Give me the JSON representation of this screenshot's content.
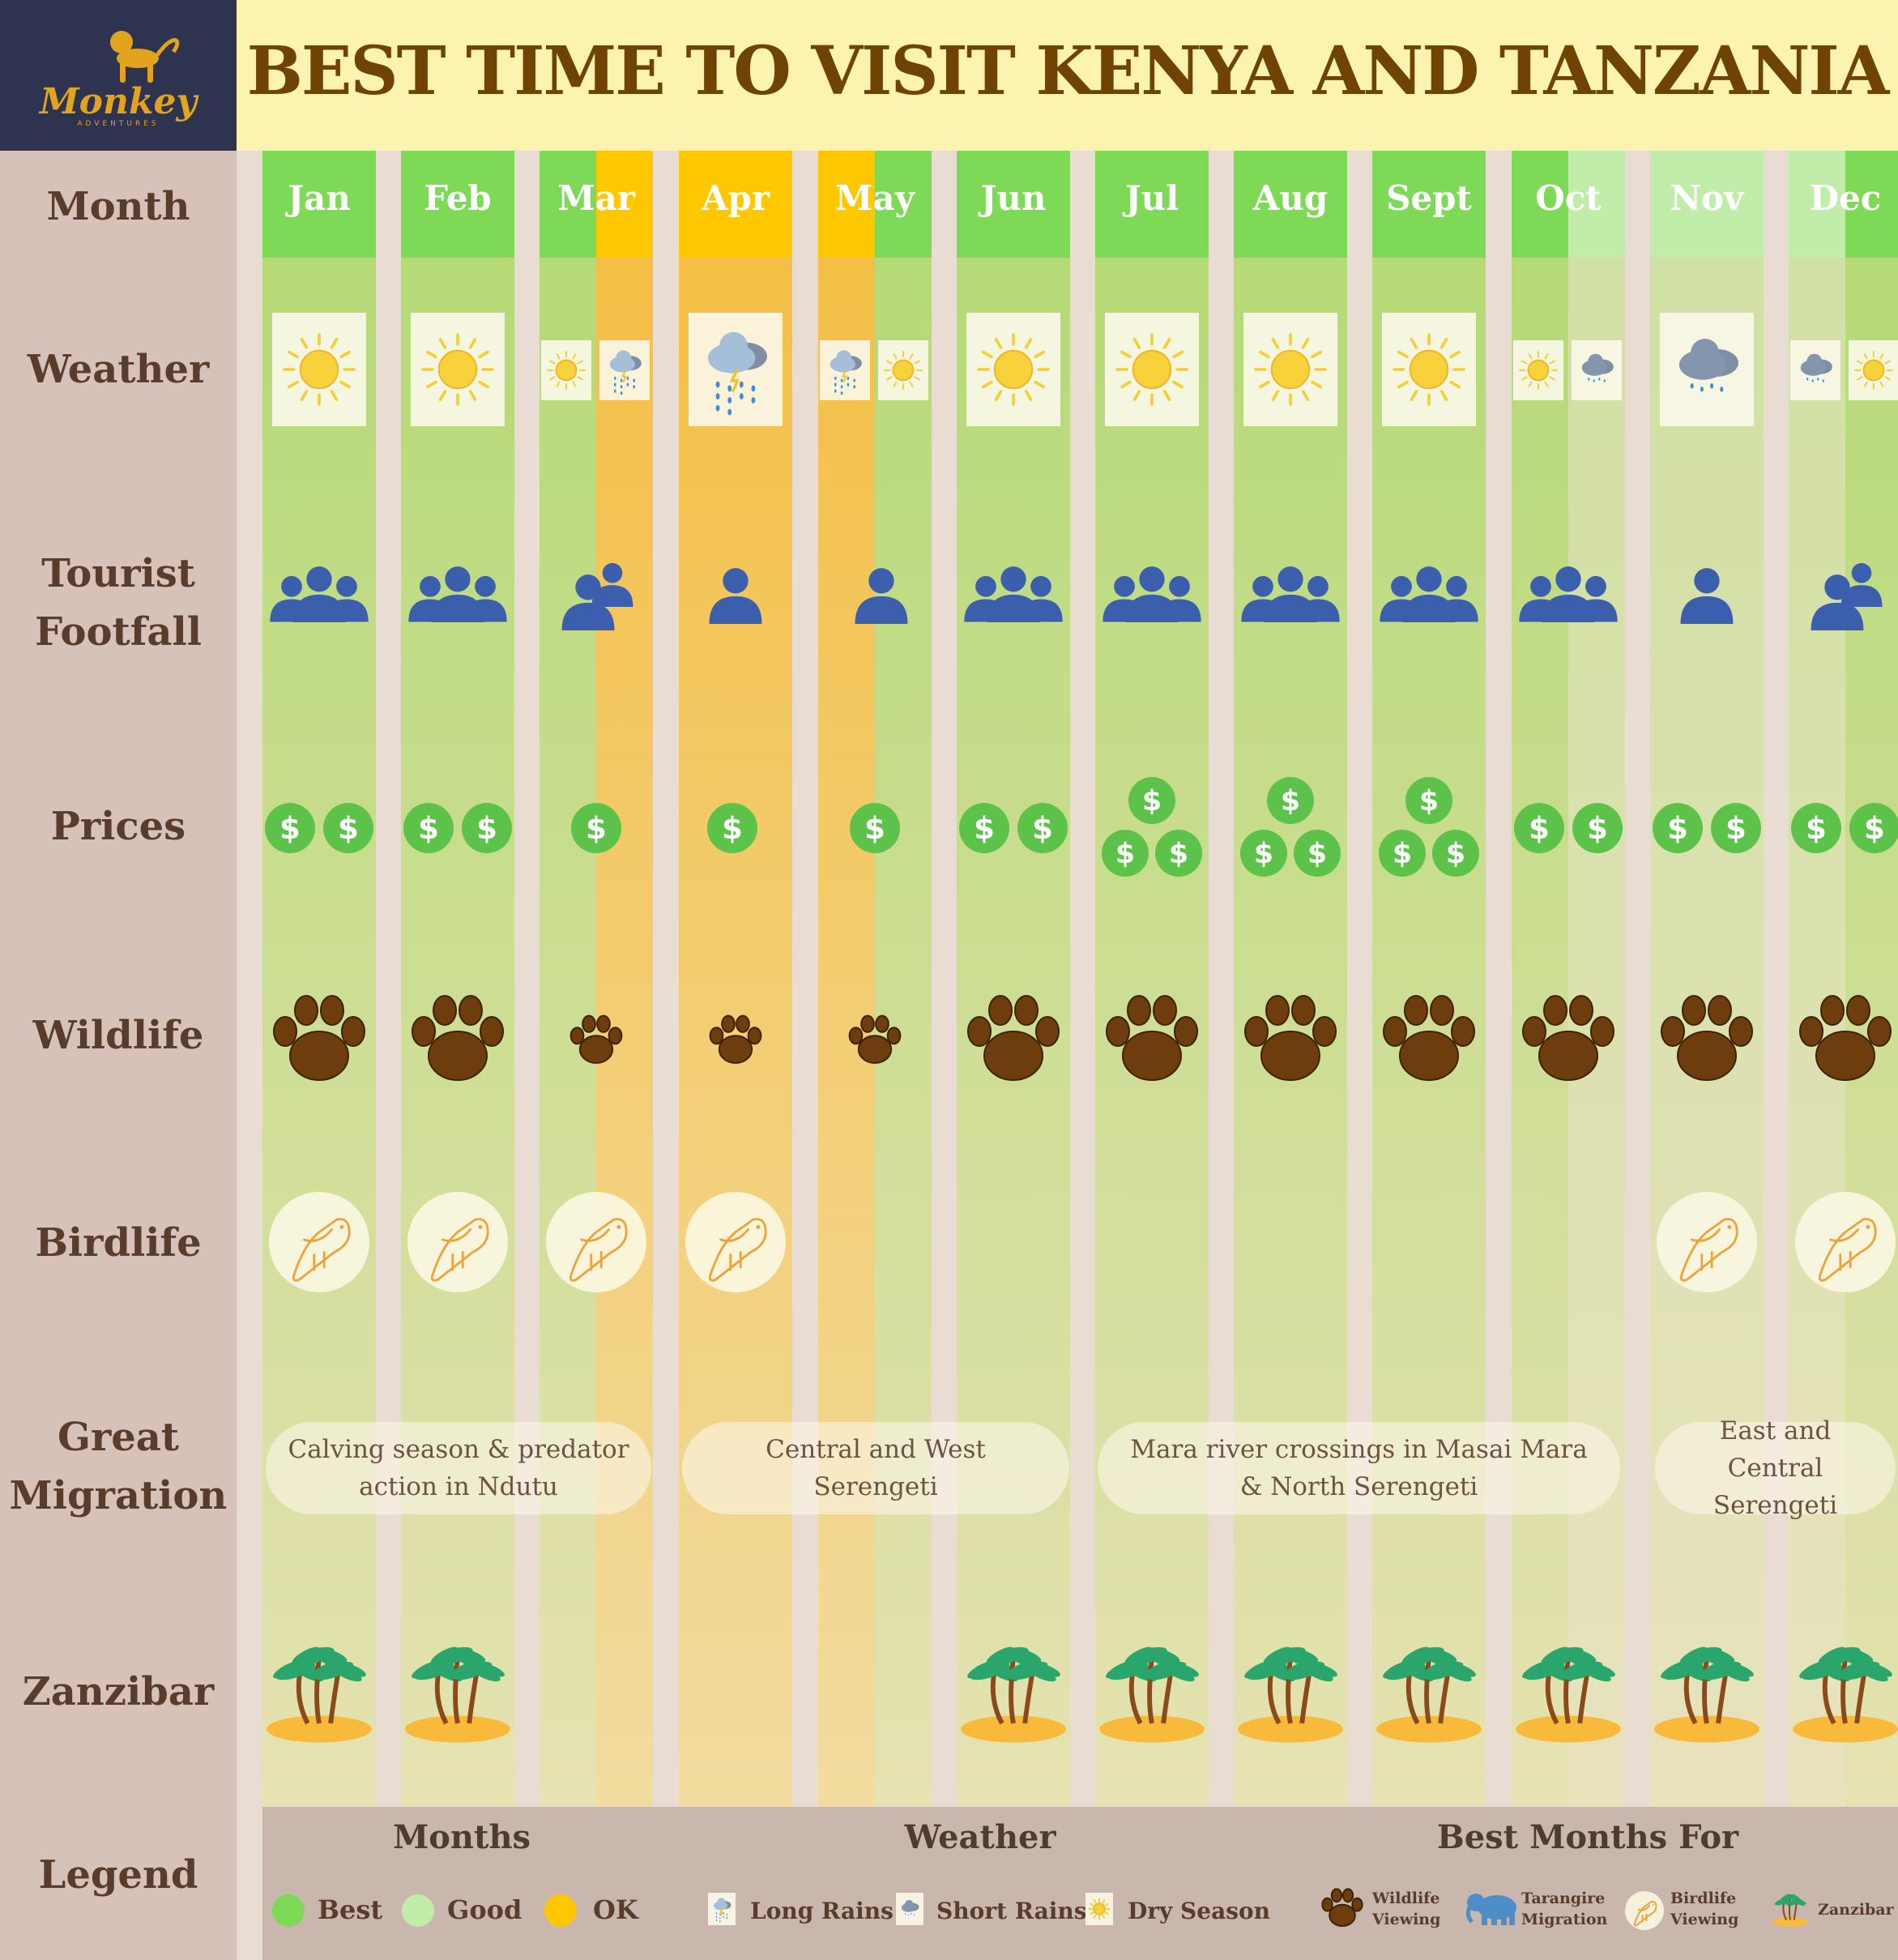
{
  "brand": {
    "name": "Monkey",
    "tagline": "ADVENTURES"
  },
  "title": "BEST TIME TO VISIT KENYA AND TANZANIA",
  "rows": {
    "month": "Month",
    "weather": "Weather",
    "footfall_1": "Tourist",
    "footfall_2": "Footfall",
    "prices": "Prices",
    "wildlife": "Wildlife",
    "birdlife": "Birdlife",
    "migration_1": "Great",
    "migration_2": "Migration",
    "zanzibar": "Zanzibar",
    "legend": "Legend"
  },
  "months": [
    {
      "label": "Jan",
      "rating": [
        "best"
      ],
      "weather": [
        "dry"
      ],
      "footfall": 3,
      "prices": 2,
      "wildlife": "high",
      "birdlife": true,
      "zanzibar": true
    },
    {
      "label": "Feb",
      "rating": [
        "best"
      ],
      "weather": [
        "dry"
      ],
      "footfall": 3,
      "prices": 2,
      "wildlife": "high",
      "birdlife": true,
      "zanzibar": true
    },
    {
      "label": "Mar",
      "rating": [
        "best",
        "ok"
      ],
      "weather": [
        "dry",
        "long"
      ],
      "footfall": 2,
      "prices": 1,
      "wildlife": "low",
      "birdlife": true,
      "zanzibar": false
    },
    {
      "label": "Apr",
      "rating": [
        "ok"
      ],
      "weather": [
        "long"
      ],
      "footfall": 1,
      "prices": 1,
      "wildlife": "low",
      "birdlife": true,
      "zanzibar": false
    },
    {
      "label": "May",
      "rating": [
        "ok",
        "best"
      ],
      "weather": [
        "long",
        "dry"
      ],
      "footfall": 1,
      "prices": 1,
      "wildlife": "low",
      "birdlife": false,
      "zanzibar": false
    },
    {
      "label": "Jun",
      "rating": [
        "best"
      ],
      "weather": [
        "dry"
      ],
      "footfall": 3,
      "prices": 2,
      "wildlife": "high",
      "birdlife": false,
      "zanzibar": true
    },
    {
      "label": "Jul",
      "rating": [
        "best"
      ],
      "weather": [
        "dry"
      ],
      "footfall": 3,
      "prices": 3,
      "wildlife": "high",
      "birdlife": false,
      "zanzibar": true
    },
    {
      "label": "Aug",
      "rating": [
        "best"
      ],
      "weather": [
        "dry"
      ],
      "footfall": 3,
      "prices": 3,
      "wildlife": "high",
      "birdlife": false,
      "zanzibar": true
    },
    {
      "label": "Sept",
      "rating": [
        "best"
      ],
      "weather": [
        "dry"
      ],
      "footfall": 3,
      "prices": 3,
      "wildlife": "high",
      "birdlife": false,
      "zanzibar": true
    },
    {
      "label": "Oct",
      "rating": [
        "best",
        "good"
      ],
      "weather": [
        "dry",
        "short"
      ],
      "footfall": 3,
      "prices": 2,
      "wildlife": "high",
      "birdlife": false,
      "zanzibar": true
    },
    {
      "label": "Nov",
      "rating": [
        "good"
      ],
      "weather": [
        "short"
      ],
      "footfall": 1,
      "prices": 2,
      "wildlife": "high",
      "birdlife": true,
      "zanzibar": true
    },
    {
      "label": "Dec",
      "rating": [
        "good",
        "best"
      ],
      "weather": [
        "short",
        "dry"
      ],
      "footfall": 2,
      "prices": 2,
      "wildlife": "high",
      "birdlife": true,
      "zanzibar": true
    }
  ],
  "migration": [
    {
      "text": "Calving season & predator action in Ndutu"
    },
    {
      "text": "Central and West Serengeti"
    },
    {
      "text": "Mara river crossings in Masai Mara & North Serengeti"
    },
    {
      "text": "East and Central Serengeti"
    }
  ],
  "legend": {
    "months_title": "Months",
    "best": "Best",
    "good": "Good",
    "ok": "OK",
    "weather_title": "Weather",
    "long_rains": "Long Rains",
    "short_rains": "Short Rains",
    "dry_season": "Dry Season",
    "best_for_title": "Best Months For",
    "wildlife_1": "Wildlife",
    "wildlife_2": "Viewing",
    "tarangire_1": "Tarangire",
    "tarangire_2": "Migration",
    "birdlife_1": "Birdlife",
    "birdlife_2": "Viewing",
    "zanzibar": "Zanzibar"
  },
  "colors": {
    "best": "#7ed957",
    "good": "#c1ecaa",
    "ok": "#ffc700",
    "title": "#6f4304",
    "label_text": "#5a3c2c",
    "logo_bg": "#2e3350",
    "title_bg": "#fdf3b0"
  },
  "icons": {
    "weather": "sun-icon / rain-cloud-icon",
    "footfall": "people-icon",
    "prices": "dollar-coin-icon",
    "wildlife": "paw-print-icon",
    "birdlife": "parrot-icon",
    "zanzibar": "palm-island-icon",
    "tarangire": "elephant-icon"
  }
}
